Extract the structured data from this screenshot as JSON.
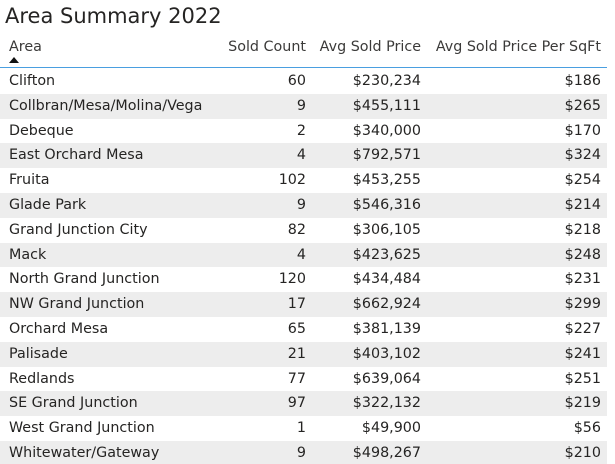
{
  "title": "Area Summary 2022",
  "columns": {
    "area": "Area",
    "sold_count": "Sold Count",
    "avg_sold_price": "Avg Sold Price",
    "avg_price_per_sqft": "Avg Sold Price Per SqFt"
  },
  "sort": {
    "column": "Area",
    "direction": "ascending",
    "icon": "sort-ascending-icon"
  },
  "rows": [
    {
      "area": "Clifton",
      "sold_count": "60",
      "avg_sold_price": "$230,234",
      "avg_price_per_sqft": "$186"
    },
    {
      "area": "Collbran/Mesa/Molina/Vega",
      "sold_count": "9",
      "avg_sold_price": "$455,111",
      "avg_price_per_sqft": "$265"
    },
    {
      "area": "Debeque",
      "sold_count": "2",
      "avg_sold_price": "$340,000",
      "avg_price_per_sqft": "$170"
    },
    {
      "area": "East Orchard Mesa",
      "sold_count": "4",
      "avg_sold_price": "$792,571",
      "avg_price_per_sqft": "$324"
    },
    {
      "area": "Fruita",
      "sold_count": "102",
      "avg_sold_price": "$453,255",
      "avg_price_per_sqft": "$254"
    },
    {
      "area": "Glade Park",
      "sold_count": "9",
      "avg_sold_price": "$546,316",
      "avg_price_per_sqft": "$214"
    },
    {
      "area": "Grand Junction City",
      "sold_count": "82",
      "avg_sold_price": "$306,105",
      "avg_price_per_sqft": "$218"
    },
    {
      "area": "Mack",
      "sold_count": "4",
      "avg_sold_price": "$423,625",
      "avg_price_per_sqft": "$248"
    },
    {
      "area": "North Grand Junction",
      "sold_count": "120",
      "avg_sold_price": "$434,484",
      "avg_price_per_sqft": "$231"
    },
    {
      "area": "NW Grand Junction",
      "sold_count": "17",
      "avg_sold_price": "$662,924",
      "avg_price_per_sqft": "$299"
    },
    {
      "area": "Orchard Mesa",
      "sold_count": "65",
      "avg_sold_price": "$381,139",
      "avg_price_per_sqft": "$227"
    },
    {
      "area": "Palisade",
      "sold_count": "21",
      "avg_sold_price": "$403,102",
      "avg_price_per_sqft": "$241"
    },
    {
      "area": "Redlands",
      "sold_count": "77",
      "avg_sold_price": "$639,064",
      "avg_price_per_sqft": "$251"
    },
    {
      "area": "SE Grand Junction",
      "sold_count": "97",
      "avg_sold_price": "$322,132",
      "avg_price_per_sqft": "$219"
    },
    {
      "area": "West Grand Junction",
      "sold_count": "1",
      "avg_sold_price": "$49,900",
      "avg_price_per_sqft": "$56"
    },
    {
      "area": "Whitewater/Gateway",
      "sold_count": "9",
      "avg_sold_price": "$498,267",
      "avg_price_per_sqft": "$210"
    }
  ],
  "colors": {
    "header_underline": "#4a9fe0",
    "alt_row": "#ededed",
    "text": "#252423"
  }
}
